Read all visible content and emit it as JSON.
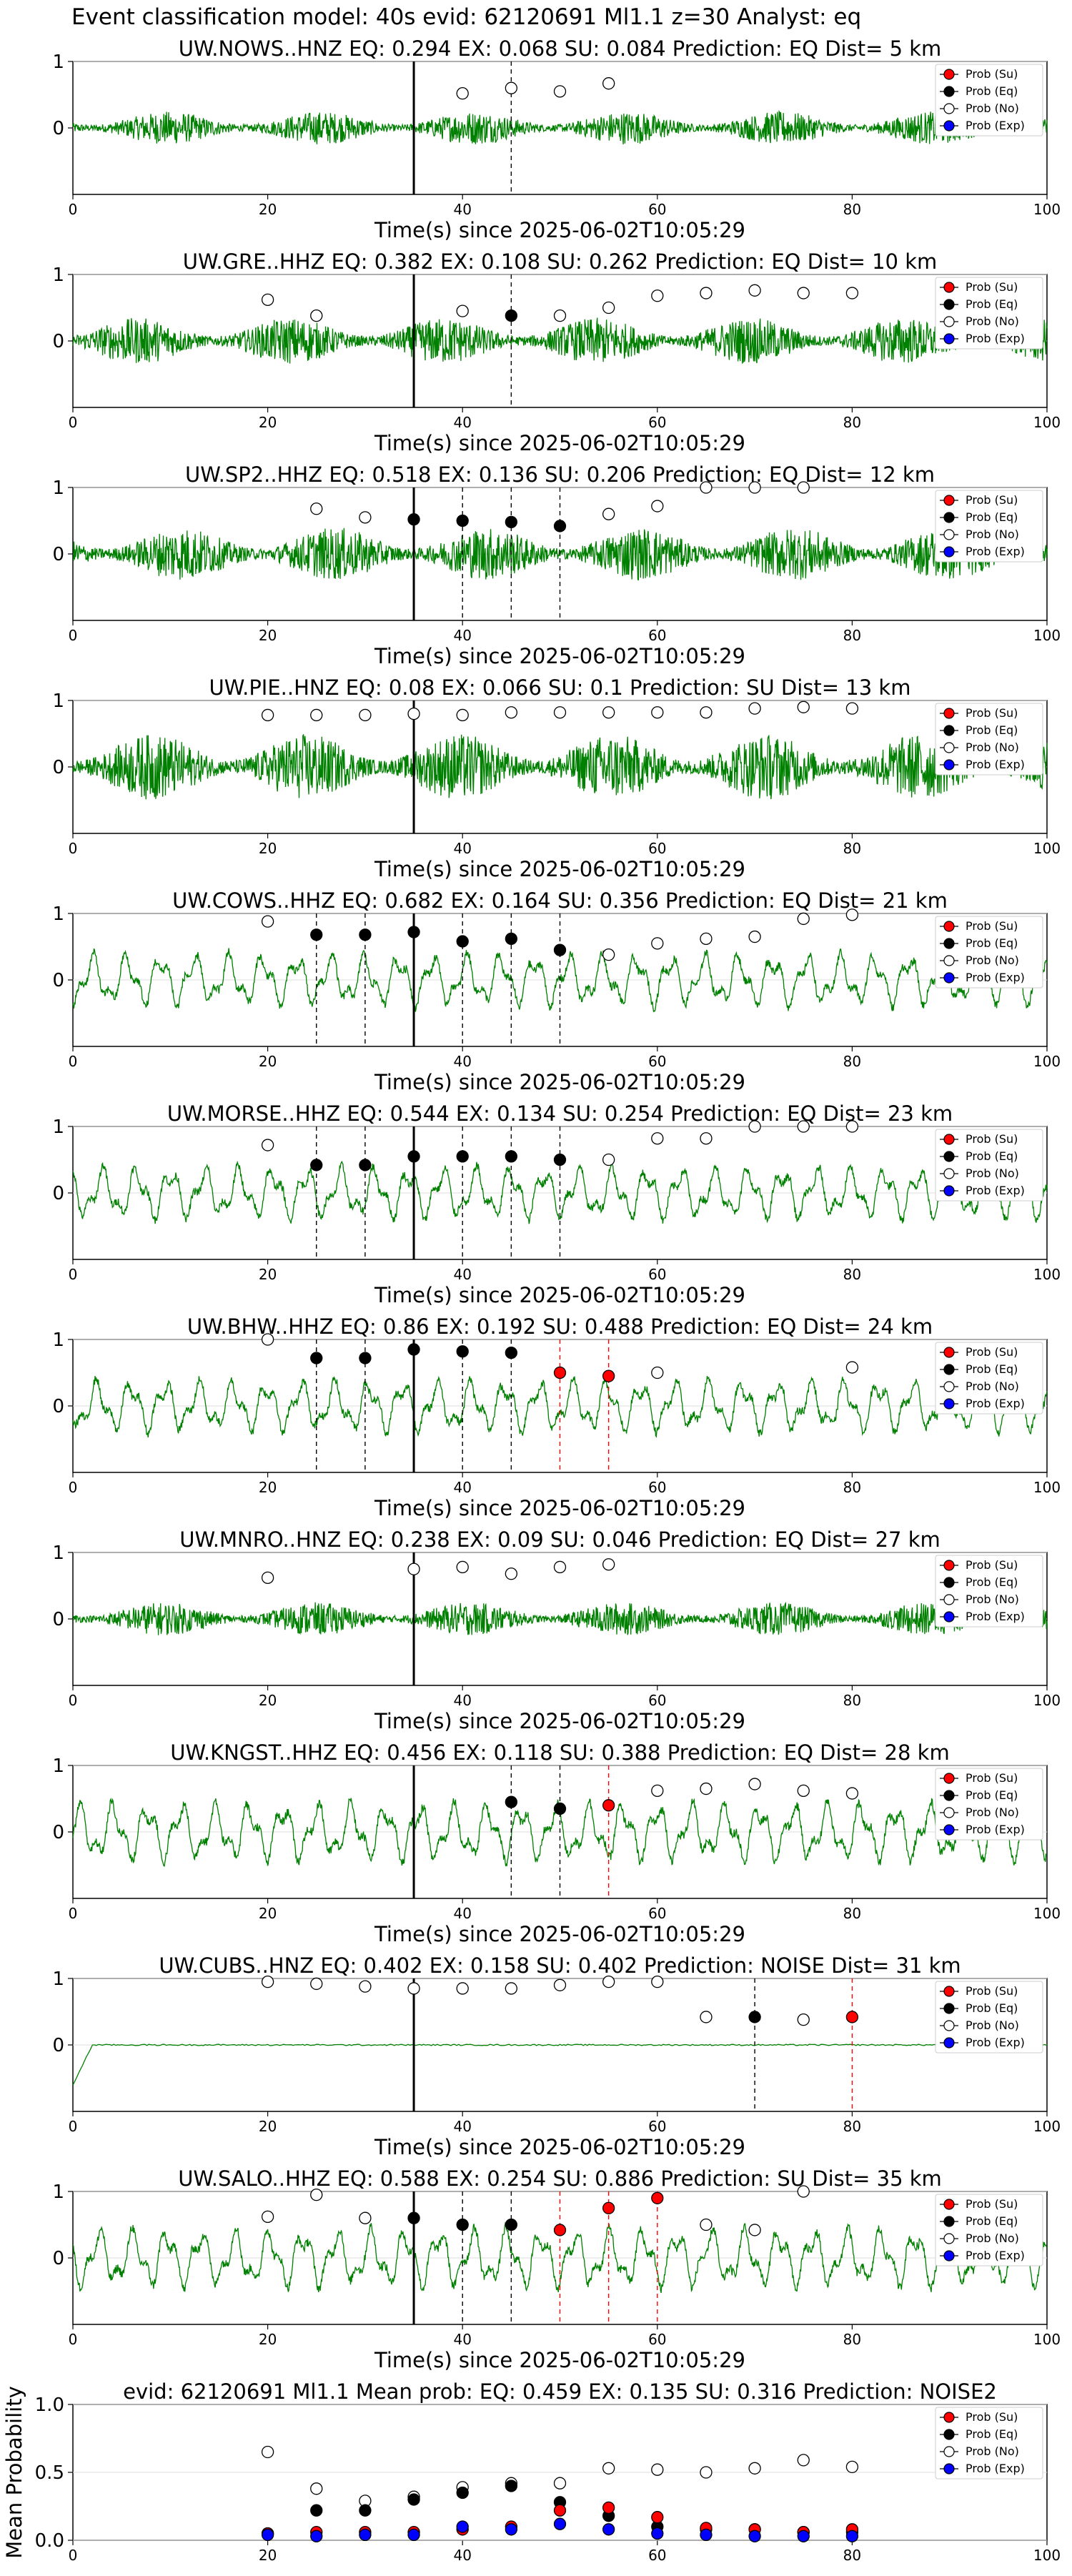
{
  "suptitle": "Event classification model: 40s evid: 62120691 Ml1.1 z=30 Analyst: eq",
  "x_label": "Time(s) since 2025-06-02T10:05:29",
  "legend": [
    "Prob (Su)",
    "Prob (Eq)",
    "Prob (No)",
    "Prob (Exp)"
  ],
  "colors": {
    "waveform": "#008000",
    "su": "#ff0000",
    "eq": "#000000",
    "no": "#ffffff",
    "exp": "#0000ff",
    "pick": "#000000"
  },
  "chart_data": [
    {
      "type": "line",
      "title": "UW.NOWS..HNZ   EQ: 0.294  EX: 0.068  SU: 0.084   Prediction: EQ    Dist= 5 km",
      "xlim": [
        0,
        100
      ],
      "ylim": [
        -1,
        1
      ],
      "xticks": [
        0,
        20,
        40,
        60,
        80,
        100
      ],
      "yticks": [
        0,
        1
      ],
      "waveform": {
        "style": "noise",
        "amp": 0.25
      },
      "p_pick": 35,
      "eq_lines": [
        45
      ],
      "su_lines": [],
      "su": [],
      "eq": [],
      "no": [
        [
          40,
          0.52
        ],
        [
          45,
          0.6
        ],
        [
          50,
          0.55
        ],
        [
          55,
          0.67
        ]
      ],
      "exp": []
    },
    {
      "type": "line",
      "title": "UW.GRE..HHZ   EQ: 0.382  EX: 0.108  SU: 0.262   Prediction: EQ    Dist= 10 km",
      "xlim": [
        0,
        100
      ],
      "ylim": [
        -1,
        1
      ],
      "xticks": [
        0,
        20,
        40,
        60,
        80,
        100
      ],
      "yticks": [
        0,
        1
      ],
      "waveform": {
        "style": "noise",
        "amp": 0.35
      },
      "p_pick": 35,
      "eq_lines": [
        45
      ],
      "su_lines": [],
      "su": [],
      "eq": [
        [
          45,
          0.38
        ]
      ],
      "no": [
        [
          20,
          0.62
        ],
        [
          25,
          0.38
        ],
        [
          40,
          0.45
        ],
        [
          50,
          0.38
        ],
        [
          55,
          0.5
        ],
        [
          60,
          0.68
        ],
        [
          65,
          0.72
        ],
        [
          70,
          0.76
        ],
        [
          75,
          0.72
        ],
        [
          80,
          0.72
        ]
      ],
      "exp": []
    },
    {
      "type": "line",
      "title": "UW.SP2..HHZ   EQ: 0.518  EX: 0.136  SU: 0.206   Prediction: EQ    Dist= 12 km",
      "xlim": [
        0,
        100
      ],
      "ylim": [
        -1,
        1
      ],
      "xticks": [
        0,
        20,
        40,
        60,
        80,
        100
      ],
      "yticks": [
        0,
        1
      ],
      "waveform": {
        "style": "noise",
        "amp": 0.4
      },
      "p_pick": 35,
      "eq_lines": [
        40,
        45,
        50
      ],
      "su_lines": [],
      "su": [],
      "eq": [
        [
          35,
          0.52
        ],
        [
          40,
          0.5
        ],
        [
          45,
          0.48
        ],
        [
          50,
          0.42
        ]
      ],
      "no": [
        [
          25,
          0.68
        ],
        [
          30,
          0.55
        ],
        [
          55,
          0.6
        ],
        [
          60,
          0.72
        ],
        [
          65,
          1.0
        ],
        [
          70,
          1.0
        ],
        [
          75,
          1.0
        ]
      ],
      "exp": []
    },
    {
      "type": "line",
      "title": "UW.PIE..HNZ   EQ: 0.08  EX: 0.066  SU: 0.1   Prediction: SU    Dist= 13 km",
      "xlim": [
        0,
        100
      ],
      "ylim": [
        -1,
        1
      ],
      "xticks": [
        0,
        20,
        40,
        60,
        80,
        100
      ],
      "yticks": [
        0,
        1
      ],
      "waveform": {
        "style": "noise",
        "amp": 0.5
      },
      "p_pick": 35,
      "eq_lines": [],
      "su_lines": [],
      "su": [],
      "eq": [],
      "no": [
        [
          20,
          0.78
        ],
        [
          25,
          0.78
        ],
        [
          30,
          0.78
        ],
        [
          35,
          0.8
        ],
        [
          40,
          0.78
        ],
        [
          45,
          0.82
        ],
        [
          50,
          0.82
        ],
        [
          55,
          0.82
        ],
        [
          60,
          0.82
        ],
        [
          65,
          0.82
        ],
        [
          70,
          0.88
        ],
        [
          75,
          0.9
        ],
        [
          80,
          0.88
        ]
      ],
      "exp": []
    },
    {
      "type": "line",
      "title": "UW.COWS..HHZ   EQ: 0.682  EX: 0.164  SU: 0.356   Prediction: EQ    Dist= 21 km",
      "xlim": [
        0,
        100
      ],
      "ylim": [
        -1,
        1
      ],
      "xticks": [
        0,
        20,
        40,
        60,
        80,
        100
      ],
      "yticks": [
        0,
        1
      ],
      "waveform": {
        "style": "wave",
        "amp": 0.4
      },
      "p_pick": 35,
      "eq_lines": [
        25,
        30,
        40,
        45,
        50
      ],
      "su_lines": [],
      "su": [],
      "eq": [
        [
          25,
          0.68
        ],
        [
          30,
          0.68
        ],
        [
          35,
          0.72
        ],
        [
          40,
          0.58
        ],
        [
          45,
          0.62
        ],
        [
          50,
          0.45
        ]
      ],
      "no": [
        [
          20,
          0.88
        ],
        [
          55,
          0.38
        ],
        [
          60,
          0.55
        ],
        [
          65,
          0.62
        ],
        [
          70,
          0.65
        ],
        [
          75,
          0.92
        ],
        [
          80,
          0.98
        ]
      ],
      "exp": []
    },
    {
      "type": "line",
      "title": "UW.MORSE..HHZ   EQ: 0.544  EX: 0.134  SU: 0.254   Prediction: EQ    Dist= 23 km",
      "xlim": [
        0,
        100
      ],
      "ylim": [
        -1,
        1
      ],
      "xticks": [
        0,
        20,
        40,
        60,
        80,
        100
      ],
      "yticks": [
        0,
        1
      ],
      "waveform": {
        "style": "wave",
        "amp": 0.4
      },
      "p_pick": 35,
      "eq_lines": [
        25,
        30,
        40,
        45,
        50
      ],
      "su_lines": [],
      "su": [],
      "eq": [
        [
          25,
          0.42
        ],
        [
          30,
          0.42
        ],
        [
          35,
          0.55
        ],
        [
          40,
          0.55
        ],
        [
          45,
          0.55
        ],
        [
          50,
          0.5
        ]
      ],
      "no": [
        [
          20,
          0.72
        ],
        [
          55,
          0.5
        ],
        [
          60,
          0.82
        ],
        [
          65,
          0.82
        ],
        [
          70,
          1.0
        ],
        [
          75,
          1.0
        ],
        [
          80,
          1.0
        ]
      ],
      "exp": []
    },
    {
      "type": "line",
      "title": "UW.BHW..HHZ   EQ: 0.86  EX: 0.192  SU: 0.488   Prediction: EQ    Dist= 24 km",
      "xlim": [
        0,
        100
      ],
      "ylim": [
        -1,
        1
      ],
      "xticks": [
        0,
        20,
        40,
        60,
        80,
        100
      ],
      "yticks": [
        0,
        1
      ],
      "waveform": {
        "style": "wave",
        "amp": 0.4
      },
      "p_pick": 35,
      "eq_lines": [
        25,
        30,
        40,
        45
      ],
      "su_lines": [
        50,
        55
      ],
      "su": [
        [
          50,
          0.5
        ],
        [
          55,
          0.45
        ]
      ],
      "eq": [
        [
          25,
          0.72
        ],
        [
          30,
          0.72
        ],
        [
          35,
          0.85
        ],
        [
          40,
          0.82
        ],
        [
          45,
          0.8
        ]
      ],
      "no": [
        [
          20,
          1.0
        ],
        [
          60,
          0.5
        ],
        [
          80,
          0.58
        ]
      ],
      "exp": []
    },
    {
      "type": "line",
      "title": "UW.MNRO..HNZ   EQ: 0.238  EX: 0.09  SU: 0.046   Prediction: EQ    Dist= 27 km",
      "xlim": [
        0,
        100
      ],
      "ylim": [
        -1,
        1
      ],
      "xticks": [
        0,
        20,
        40,
        60,
        80,
        100
      ],
      "yticks": [
        0,
        1
      ],
      "waveform": {
        "style": "noise",
        "amp": 0.25
      },
      "p_pick": 35,
      "eq_lines": [],
      "su_lines": [],
      "su": [],
      "eq": [],
      "no": [
        [
          20,
          0.62
        ],
        [
          35,
          0.75
        ],
        [
          40,
          0.78
        ],
        [
          45,
          0.68
        ],
        [
          50,
          0.78
        ],
        [
          55,
          0.82
        ]
      ],
      "exp": []
    },
    {
      "type": "line",
      "title": "UW.KNGST..HHZ   EQ: 0.456  EX: 0.118  SU: 0.388   Prediction: EQ    Dist= 28 km",
      "xlim": [
        0,
        100
      ],
      "ylim": [
        -1,
        1
      ],
      "xticks": [
        0,
        20,
        40,
        60,
        80,
        100
      ],
      "yticks": [
        0,
        1
      ],
      "waveform": {
        "style": "wave",
        "amp": 0.45
      },
      "p_pick": 35,
      "eq_lines": [
        45,
        50
      ],
      "su_lines": [
        55
      ],
      "su": [
        [
          55,
          0.4
        ]
      ],
      "eq": [
        [
          45,
          0.45
        ],
        [
          50,
          0.35
        ]
      ],
      "no": [
        [
          60,
          0.62
        ],
        [
          65,
          0.65
        ],
        [
          70,
          0.72
        ],
        [
          75,
          0.62
        ],
        [
          80,
          0.58
        ]
      ],
      "exp": []
    },
    {
      "type": "line",
      "title": "UW.CUBS..HNZ   EQ: 0.402  EX: 0.158  SU: 0.402   Prediction: NOISE    Dist= 31 km",
      "xlim": [
        0,
        100
      ],
      "ylim": [
        -1,
        1
      ],
      "xticks": [
        0,
        20,
        40,
        60,
        80,
        100
      ],
      "yticks": [
        0,
        1
      ],
      "waveform": {
        "style": "flat",
        "amp": 0.02
      },
      "p_pick": 35,
      "eq_lines": [
        70
      ],
      "su_lines": [
        80
      ],
      "su": [
        [
          80,
          0.42
        ]
      ],
      "eq": [
        [
          70,
          0.42
        ]
      ],
      "no": [
        [
          20,
          0.95
        ],
        [
          25,
          0.92
        ],
        [
          30,
          0.88
        ],
        [
          35,
          0.85
        ],
        [
          40,
          0.85
        ],
        [
          45,
          0.85
        ],
        [
          50,
          0.9
        ],
        [
          55,
          0.95
        ],
        [
          60,
          0.95
        ],
        [
          65,
          0.42
        ],
        [
          75,
          0.38
        ]
      ],
      "exp": []
    },
    {
      "type": "line",
      "title": "UW.SALO..HHZ   EQ: 0.588  EX: 0.254  SU: 0.886   Prediction: SU    Dist= 35 km",
      "xlim": [
        0,
        100
      ],
      "ylim": [
        -1,
        1
      ],
      "xticks": [
        0,
        20,
        40,
        60,
        80,
        100
      ],
      "yticks": [
        0,
        1
      ],
      "waveform": {
        "style": "wave",
        "amp": 0.45
      },
      "p_pick": 35,
      "eq_lines": [
        40,
        45
      ],
      "su_lines": [
        50,
        55,
        60
      ],
      "su": [
        [
          50,
          0.42
        ],
        [
          55,
          0.75
        ],
        [
          60,
          0.9
        ]
      ],
      "eq": [
        [
          35,
          0.6
        ],
        [
          40,
          0.5
        ],
        [
          45,
          0.5
        ]
      ],
      "no": [
        [
          20,
          0.62
        ],
        [
          25,
          0.95
        ],
        [
          30,
          0.6
        ],
        [
          65,
          0.5
        ],
        [
          70,
          0.42
        ],
        [
          75,
          1.0
        ]
      ],
      "exp": []
    },
    {
      "type": "scatter",
      "title": "evid: 62120691  Ml1.1   Mean prob:   EQ: 0.459  EX: 0.135  SU: 0.316   Prediction: NOISE2",
      "ylabel": "Mean Probability",
      "xlim": [
        0,
        100
      ],
      "ylim": [
        0,
        1
      ],
      "xticks": [
        0,
        20,
        40,
        60,
        80,
        100
      ],
      "yticks": [
        0.0,
        0.5,
        1.0
      ],
      "x": [
        20,
        25,
        30,
        35,
        40,
        45,
        50,
        55,
        60,
        65,
        70,
        75,
        80
      ],
      "series": [
        {
          "name": "Prob (Su)",
          "values": [
            0.05,
            0.06,
            0.06,
            0.06,
            0.08,
            0.1,
            0.22,
            0.24,
            0.17,
            0.09,
            0.08,
            0.06,
            0.08
          ]
        },
        {
          "name": "Prob (Eq)",
          "values": [
            0.05,
            0.22,
            0.22,
            0.3,
            0.35,
            0.4,
            0.28,
            0.18,
            0.1,
            0.08,
            0.08,
            0.06,
            0.06
          ]
        },
        {
          "name": "Prob (No)",
          "values": [
            0.65,
            0.38,
            0.29,
            0.32,
            0.39,
            0.42,
            0.42,
            0.53,
            0.52,
            0.5,
            0.53,
            0.59,
            0.54
          ]
        },
        {
          "name": "Prob (Exp)",
          "values": [
            0.04,
            0.03,
            0.04,
            0.04,
            0.1,
            0.08,
            0.12,
            0.08,
            0.05,
            0.04,
            0.03,
            0.03,
            0.03
          ]
        }
      ]
    }
  ]
}
